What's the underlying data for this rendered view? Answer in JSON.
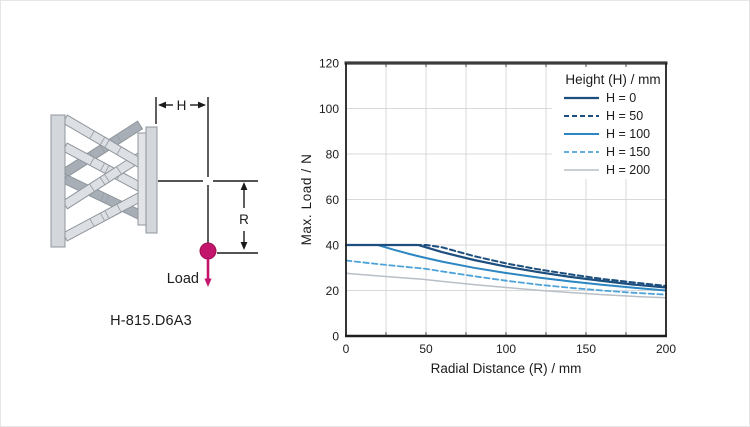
{
  "diagram": {
    "model": "H-815.D6A3",
    "load_label": "Load",
    "height_dim_label": "H",
    "radius_dim_label": "R",
    "accent_color": "#c2156b",
    "plate_color": "#d3d6da",
    "connector_color": "#e1e3e6",
    "strut_light": "#dce0e4",
    "strut_dark": "#a7aeb5",
    "outline_color": "#8f969c",
    "dim_line_color": "#1a1a1a"
  },
  "chart_data": {
    "type": "line",
    "title": "",
    "xlabel": "Radial Distance (R) / mm",
    "ylabel": "Max. Load / N",
    "xlim": [
      0,
      200
    ],
    "ylim": [
      0,
      120
    ],
    "xticks": [
      0,
      50,
      100,
      150,
      200
    ],
    "yticks": [
      0,
      20,
      40,
      60,
      80,
      100,
      120
    ],
    "x_grid_step": 25,
    "y_grid_step": 20,
    "grid": true,
    "grid_color": "#d9d9d9",
    "frame_color": "#1f1f1f",
    "legend_title": "Height (H) / mm",
    "legend_position": "top-right",
    "x": [
      0,
      10,
      20,
      30,
      40,
      45,
      50,
      60,
      80,
      100,
      120,
      140,
      160,
      180,
      200
    ],
    "series": [
      {
        "name": "H = 0",
        "color": "#1c4e7e",
        "dash": "solid",
        "values": [
          40,
          40,
          40,
          40,
          40,
          40,
          39,
          36.9,
          33.4,
          30.5,
          28.1,
          26,
          24.2,
          22.6,
          21.3
        ]
      },
      {
        "name": "H = 50",
        "color": "#1c4e7e",
        "dash": "dashed",
        "values": [
          40,
          40,
          40,
          40,
          40,
          40,
          40,
          39,
          35.1,
          31.9,
          29.3,
          27.1,
          25.1,
          23.5,
          22
        ]
      },
      {
        "name": "H = 100",
        "color": "#2b86c1",
        "dash": "solid",
        "values": [
          40,
          40,
          40,
          37.9,
          36,
          35.1,
          34.3,
          32.7,
          30,
          27.7,
          25.7,
          24,
          22.5,
          21.2,
          20
        ]
      },
      {
        "name": "H = 150",
        "color": "#4da3d8",
        "dash": "dashed",
        "values": [
          33.2,
          32.4,
          31.6,
          30.9,
          30.2,
          29.9,
          29.5,
          28.4,
          26.3,
          24.3,
          22.6,
          21.2,
          20,
          19,
          18.2
        ]
      },
      {
        "name": "H = 200",
        "color": "#b9bfc6",
        "dash": "solid",
        "values": [
          27.6,
          27,
          26.4,
          25.9,
          25.3,
          25.1,
          24.8,
          24,
          22.6,
          21.3,
          20.1,
          19.1,
          18.2,
          17.4,
          16.8
        ]
      }
    ]
  }
}
